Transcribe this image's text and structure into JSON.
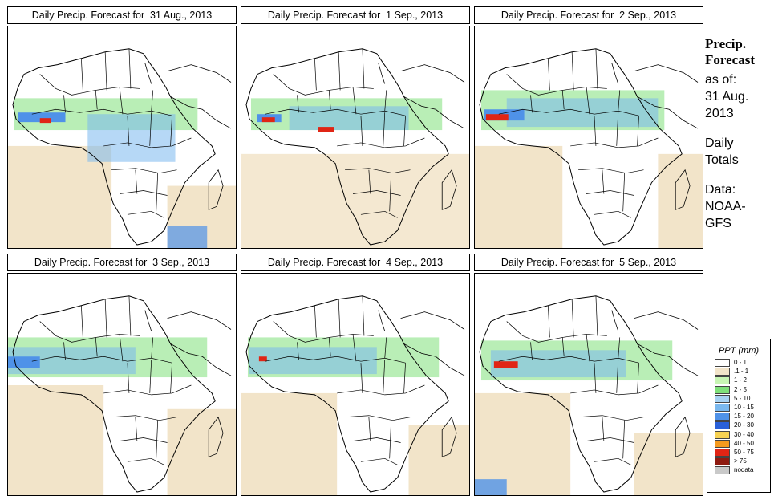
{
  "panels": [
    {
      "title": "Daily Precip. Forecast for  31 Aug., 2013"
    },
    {
      "title": "Daily Precip. Forecast for  1 Sep., 2013"
    },
    {
      "title": "Daily Precip. Forecast for  2 Sep., 2013"
    },
    {
      "title": "Daily Precip. Forecast for  3 Sep., 2013"
    },
    {
      "title": "Daily Precip. Forecast for  4 Sep., 2013"
    },
    {
      "title": "Daily Precip. Forecast for  5 Sep., 2013"
    }
  ],
  "sidebar": {
    "title_line1": "Precip.",
    "title_line2": "Forecast",
    "asof": "as of:",
    "date1": "31 Aug.",
    "date2": "2013",
    "totals1": "Daily",
    "totals2": "Totals",
    "data1": "Data:",
    "data2": "NOAA-",
    "data3": "GFS"
  },
  "legend": {
    "title": "PPT (mm)",
    "items": [
      {
        "label": "0 - 1",
        "color": "#ffffff"
      },
      {
        "label": ".1 - 1",
        "color": "#f2e4c9"
      },
      {
        "label": "1 - 2",
        "color": "#c8f5b4"
      },
      {
        "label": "2 - 5",
        "color": "#7fe07a"
      },
      {
        "label": "5 - 10",
        "color": "#a8d2f2"
      },
      {
        "label": "10 - 15",
        "color": "#7ab8ee"
      },
      {
        "label": "15 - 20",
        "color": "#4f92e8"
      },
      {
        "label": "20 - 30",
        "color": "#2a60d8"
      },
      {
        "label": "30 - 40",
        "color": "#f7d253"
      },
      {
        "label": "40 - 50",
        "color": "#f59a1e"
      },
      {
        "label": "50 - 75",
        "color": "#e02515"
      },
      {
        "label": "> 75",
        "color": "#8e1a10"
      },
      {
        "label": "nodata",
        "color": "#c9c9c9"
      }
    ]
  }
}
